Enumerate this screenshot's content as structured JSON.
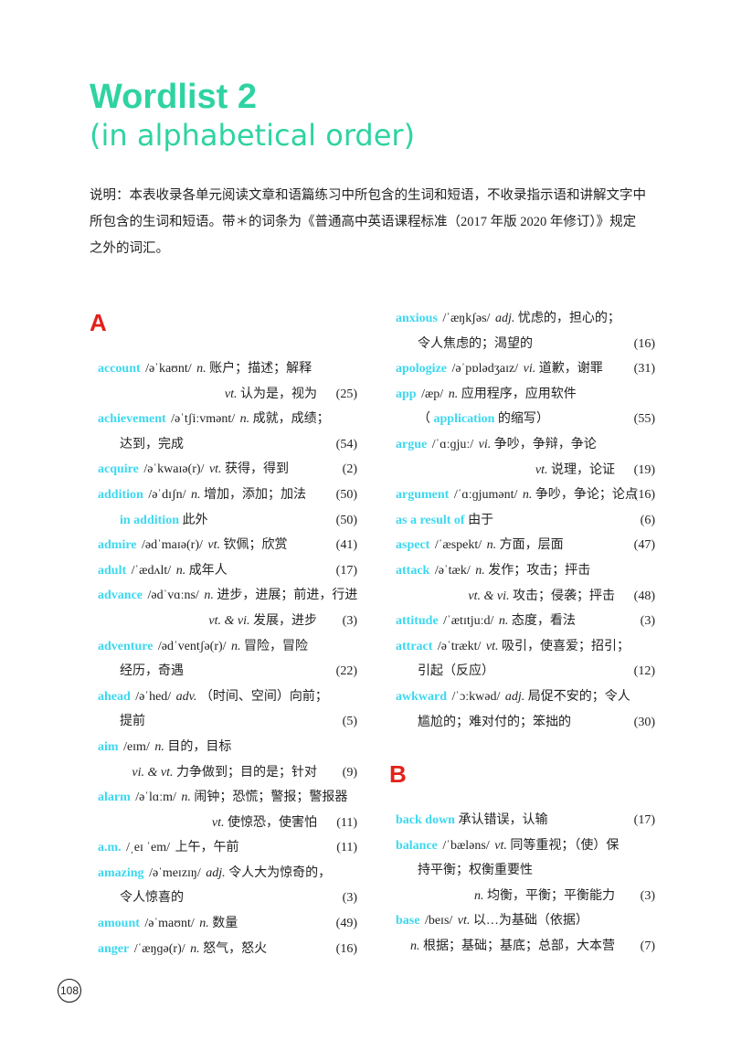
{
  "header": {
    "title": "Wordlist 2",
    "subtitle": "(in alphabetical order)",
    "note": "说明：本表收录各单元阅读文章和语篇练习中所包含的生词和短语，不收录指示语和讲解文字中所包含的生词和短语。带＊的词条为《普通高中英语课程标准（2017 年版 2020 年修订）》规定之外的词汇。"
  },
  "colors": {
    "title": "#2fd3a2",
    "headword": "#3dd8ef",
    "section_letter": "#e32119"
  },
  "sections": [
    {
      "letter": "A",
      "columns": [
        [
          {
            "type": "head",
            "w": "account",
            "ph": "/əˈkaʊnt/",
            "pos": "n.",
            "def": "账户；描述；解释"
          },
          {
            "type": "sense",
            "pos": "vt.",
            "def": "认为是，视为",
            "num": "(25)"
          },
          {
            "type": "head",
            "w": "achievement",
            "ph": "/əˈtʃiːvmənt/",
            "pos": "n.",
            "def": "成就，成绩；"
          },
          {
            "type": "cont",
            "def": "达到，完成",
            "num": "(54)"
          },
          {
            "type": "head",
            "w": "acquire",
            "ph": "/əˈkwaɪə(r)/",
            "pos": "vt.",
            "def": "获得，得到",
            "num": "(2)"
          },
          {
            "type": "head",
            "w": "addition",
            "ph": "/əˈdɪʃn/",
            "pos": "n.",
            "def": "增加，添加；加法",
            "num": "(50)"
          },
          {
            "type": "phrase",
            "w": "in addition",
            "def": "此外",
            "num": "(50)"
          },
          {
            "type": "head",
            "w": "admire",
            "ph": "/ədˈmaɪə(r)/",
            "pos": "vt.",
            "def": "钦佩；欣赏",
            "num": "(41)"
          },
          {
            "type": "head",
            "w": "adult",
            "ph": "/ˈædʌlt/",
            "pos": "n.",
            "def": "成年人",
            "num": "(17)"
          },
          {
            "type": "head",
            "w": "advance",
            "ph": "/ədˈvɑːns/",
            "pos": "n.",
            "def": "进步，进展；前进，行进"
          },
          {
            "type": "sense",
            "pos": "vt. & vi.",
            "def": "发展，进步",
            "num": "(3)"
          },
          {
            "type": "head",
            "w": "adventure",
            "ph": "/ədˈventʃə(r)/",
            "pos": "n.",
            "def": "冒险，冒险"
          },
          {
            "type": "cont",
            "def": "经历，奇遇",
            "num": "(22)"
          },
          {
            "type": "head",
            "w": "ahead",
            "ph": "/əˈhed/",
            "pos": "adv.",
            "def": "（时间、空间）向前；"
          },
          {
            "type": "cont",
            "def": "提前",
            "num": "(5)"
          },
          {
            "type": "head",
            "w": "aim",
            "ph": "/eɪm/",
            "pos": "n.",
            "def": "目的，目标"
          },
          {
            "type": "sense",
            "pos": "vi. & vt.",
            "def": "力争做到；目的是；针对",
            "num": "(9)"
          },
          {
            "type": "head",
            "w": "alarm",
            "ph": "/əˈlɑːm/",
            "pos": "n.",
            "def": "闹钟；恐慌；警报；警报器"
          },
          {
            "type": "sense",
            "pos": "vt.",
            "def": "使惊恐，使害怕",
            "num": "(11)"
          },
          {
            "type": "head",
            "w": "a.m.",
            "ph": "/ˌeɪ ˈem/",
            "def": "上午，午前",
            "num": "(11)"
          },
          {
            "type": "head",
            "w": "amazing",
            "ph": "/əˈmeɪzɪŋ/",
            "pos": "adj.",
            "def": "令人大为惊奇的，"
          },
          {
            "type": "cont",
            "def": "令人惊喜的",
            "num": "(3)"
          },
          {
            "type": "head",
            "w": "amount",
            "ph": "/əˈmaʊnt/",
            "pos": "n.",
            "def": "数量",
            "num": "(49)"
          },
          {
            "type": "head",
            "w": "anger",
            "ph": "/ˈæŋɡə(r)/",
            "pos": "n.",
            "def": "怒气，怒火",
            "num": "(16)"
          }
        ],
        [
          {
            "type": "head",
            "w": "anxious",
            "ph": "/ˈæŋkʃəs/",
            "pos": "adj.",
            "def": "忧虑的，担心的；"
          },
          {
            "type": "cont",
            "def": "令人焦虑的；渴望的",
            "num": "(16)"
          },
          {
            "type": "head",
            "w": "apologize",
            "ph": "/əˈpɒlədʒaɪz/",
            "pos": "vi.",
            "def": "道歉，谢罪",
            "num": "(31)"
          },
          {
            "type": "head",
            "w": "app",
            "ph": "/æp/",
            "pos": "n.",
            "def": "应用程序，应用软件"
          },
          {
            "type": "cont",
            "pre": "（",
            "w": "application",
            "def": "的缩写）",
            "num": "(55)"
          },
          {
            "type": "head",
            "w": "argue",
            "ph": "/ˈɑːɡjuː/",
            "pos": "vi.",
            "def": "争吵，争辩，争论"
          },
          {
            "type": "sense",
            "pos": "vt.",
            "def": "说理，论证",
            "num": "(19)"
          },
          {
            "type": "head",
            "w": "argument",
            "ph": "/ˈɑːɡjumənt/",
            "pos": "n.",
            "def": "争吵，争论；论点",
            "num": "(16)"
          },
          {
            "type": "head",
            "w": "as a result of",
            "def": "由于",
            "num": "(6)"
          },
          {
            "type": "head",
            "w": "aspect",
            "ph": "/ˈæspekt/",
            "pos": "n.",
            "def": "方面，层面",
            "num": "(47)"
          },
          {
            "type": "head",
            "w": "attack",
            "ph": "/əˈtæk/",
            "pos": "n.",
            "def": "发作；攻击；抨击"
          },
          {
            "type": "sense",
            "pos": "vt. & vi.",
            "def": "攻击；侵袭；抨击",
            "num": "(48)"
          },
          {
            "type": "head",
            "w": "attitude",
            "ph": "/ˈætɪtjuːd/",
            "pos": "n.",
            "def": "态度，看法",
            "num": "(3)"
          },
          {
            "type": "head",
            "w": "attract",
            "ph": "/əˈtrækt/",
            "pos": "vt.",
            "def": "吸引，使喜爱；招引；"
          },
          {
            "type": "cont",
            "def": "引起（反应）",
            "num": "(12)"
          },
          {
            "type": "head",
            "w": "awkward",
            "ph": "/ˈɔːkwəd/",
            "pos": "adj.",
            "def": "局促不安的；令人"
          },
          {
            "type": "cont",
            "def": "尴尬的；难对付的；笨拙的",
            "num": "(30)"
          }
        ]
      ]
    },
    {
      "letter": "B",
      "columns": [
        [
          {
            "type": "head",
            "w": "back down",
            "def": "承认错误，认输",
            "num": "(17)"
          },
          {
            "type": "head",
            "w": "balance",
            "ph": "/ˈbæləns/",
            "pos": "vt.",
            "def": "同等重视；（使）保"
          },
          {
            "type": "cont",
            "def": "持平衡；权衡重要性"
          },
          {
            "type": "sense",
            "pos": "n.",
            "def": "均衡，平衡；平衡能力",
            "num": "(3)"
          },
          {
            "type": "head",
            "w": "base",
            "ph": "/beɪs/",
            "pos": "vt.",
            "def": "以…为基础（依据）"
          },
          {
            "type": "sense",
            "pos": "n.",
            "def": "根据；基础；基底；总部，大本营",
            "num": "(7)"
          }
        ]
      ]
    }
  ],
  "footer": {
    "page_number": "108"
  }
}
